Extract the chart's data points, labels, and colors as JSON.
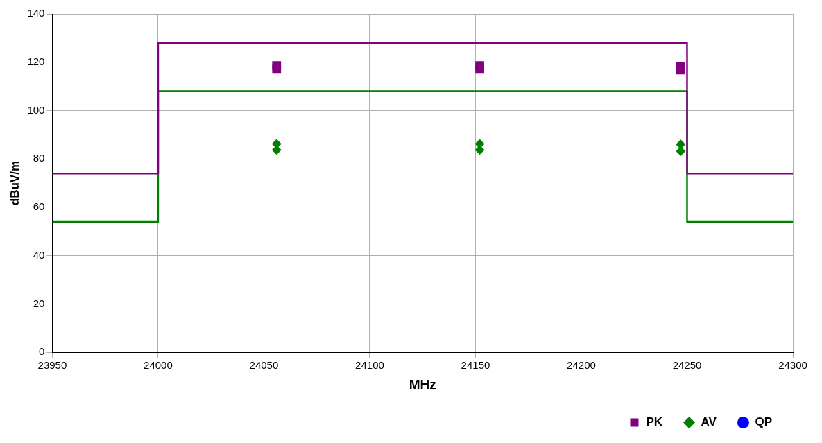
{
  "chart_data": {
    "type": "scatter",
    "xlabel": "MHz",
    "ylabel": "dBuV/m",
    "xlim": [
      23950,
      24300
    ],
    "xticks": [
      23950,
      24000,
      24050,
      24100,
      24150,
      24200,
      24250,
      24300
    ],
    "ylim": [
      0,
      140
    ],
    "yticks": [
      0,
      20,
      40,
      60,
      80,
      100,
      120,
      140
    ],
    "grid": true,
    "legend": "bottom right",
    "series": [
      {
        "type": "line",
        "color": "#800080",
        "marker": "none",
        "x": [
          23950,
          24000,
          24000,
          24250,
          24250,
          24300
        ],
        "values": [
          74,
          74,
          128,
          128,
          74,
          74
        ]
      },
      {
        "type": "line",
        "color": "#008000",
        "marker": "none",
        "x": [
          23950,
          24000,
          24000,
          24250,
          24250,
          24300
        ],
        "values": [
          54,
          54,
          108,
          108,
          54,
          54
        ]
      },
      {
        "name": "PK",
        "type": "scatter",
        "color": "#800080",
        "marker": "square",
        "x": [
          24056,
          24056,
          24152,
          24152,
          24247,
          24247
        ],
        "values": [
          118.6,
          117.1,
          118.6,
          117.1,
          118.4,
          116.8
        ]
      },
      {
        "name": "AV",
        "type": "scatter",
        "color": "#008000",
        "marker": "diamond",
        "x": [
          24056,
          24056,
          24152,
          24152,
          24247,
          24247
        ],
        "values": [
          86.2,
          83.7,
          86.2,
          83.7,
          86,
          83.2
        ]
      },
      {
        "name": "QP",
        "type": "scatter",
        "color": "#0000ff",
        "marker": "circle"
      }
    ]
  }
}
